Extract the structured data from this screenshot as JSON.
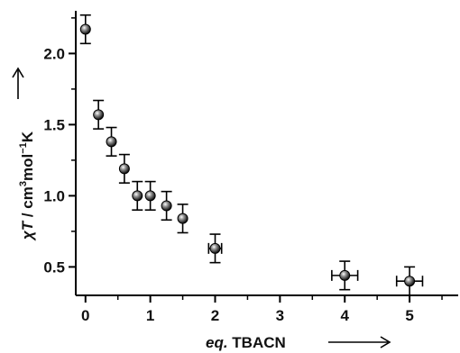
{
  "chart_data": {
    "type": "scatter",
    "title": "",
    "xlabel": {
      "prefix": "eq.",
      "main": " TBACN"
    },
    "ylabel": {
      "chi": "χ",
      "T": "T",
      "rest": " / cm",
      "sup1": "3",
      "mol": "mol",
      "sup2": "−1",
      "K": "K"
    },
    "xlim": [
      -0.15,
      5.75
    ],
    "ylim": [
      0.3,
      2.3
    ],
    "x_ticks": [
      0,
      1,
      2,
      3,
      4,
      5
    ],
    "x_tick_labels": [
      "0",
      "1",
      "2",
      "3",
      "4",
      "5"
    ],
    "y_ticks": [
      0.5,
      1.0,
      1.5,
      2.0
    ],
    "y_tick_labels": [
      "0.5",
      "1.0",
      "1.5",
      "2.0"
    ],
    "grid": false,
    "series": [
      {
        "marker": "sphere",
        "points": [
          {
            "x": 0.0,
            "y": 2.17,
            "yerr": 0.1,
            "xerr": 0
          },
          {
            "x": 0.2,
            "y": 1.57,
            "yerr": 0.1,
            "xerr": 0
          },
          {
            "x": 0.4,
            "y": 1.38,
            "yerr": 0.1,
            "xerr": 0
          },
          {
            "x": 0.6,
            "y": 1.19,
            "yerr": 0.1,
            "xerr": 0
          },
          {
            "x": 0.8,
            "y": 1.0,
            "yerr": 0.1,
            "xerr": 0
          },
          {
            "x": 1.0,
            "y": 1.0,
            "yerr": 0.1,
            "xerr": 0
          },
          {
            "x": 1.25,
            "y": 0.93,
            "yerr": 0.1,
            "xerr": 0
          },
          {
            "x": 1.5,
            "y": 0.84,
            "yerr": 0.1,
            "xerr": 0
          },
          {
            "x": 2.0,
            "y": 0.63,
            "yerr": 0.1,
            "xerr": 0.1
          },
          {
            "x": 4.0,
            "y": 0.44,
            "yerr": 0.1,
            "xerr": 0.2
          },
          {
            "x": 5.0,
            "y": 0.4,
            "yerr": 0.1,
            "xerr": 0.2
          }
        ]
      }
    ]
  }
}
